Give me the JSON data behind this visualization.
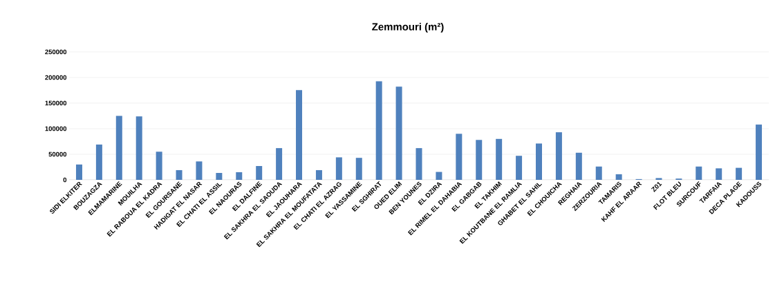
{
  "chart_data": {
    "type": "bar",
    "title": "Zemmouri (m²)",
    "categories": [
      "SIDI ELKITER",
      "BOUZAGZA",
      "ELMAMARINE",
      "MOUILHA",
      "EL RABOUA EL KADRA",
      "EL GOURSANE",
      "HADIGAT EL NASAR",
      "EL CHATI EL ASSIL",
      "EL NAOURAS",
      "EL DALFINE",
      "EL SAKHRA EL SAOUDA",
      "EL JAOUHARA",
      "EL SAKHRA EL MOUFATATA",
      "EL CHATI EL AZRAG",
      "EL YASSAMINE",
      "EL SGHIRAT",
      "OUED ELIM",
      "BEN YOUNES",
      "EL DZIRA",
      "EL RIMEL EL DAHABIA",
      "EL GABGAB",
      "EL TAKHIM",
      "EL KOUTBANE EL RAMLIA",
      "GHABET EL SAHIL",
      "EL CHOUICHA",
      "REGHAIA",
      "ZERZOURIA",
      "TAMARIS",
      "KAHF EL ARAAR",
      "Z01",
      "FLOT BLEU",
      "SURCOUF",
      "TARFAIA",
      "DECA PLAGE",
      "KADOUSS"
    ],
    "values": [
      30000,
      69000,
      125000,
      124000,
      55000,
      19000,
      36000,
      13500,
      15000,
      27000,
      62000,
      175500,
      19000,
      44000,
      43000,
      192500,
      182000,
      62000,
      15500,
      90000,
      78000,
      80000,
      47000,
      71000,
      93000,
      53000,
      26000,
      11000,
      1500,
      3500,
      2500,
      26000,
      22500,
      23500,
      108000
    ],
    "color": "#4f81bd",
    "ylim": [
      0,
      250000
    ],
    "yticks": [
      0,
      50000,
      100000,
      150000,
      200000,
      250000
    ],
    "grid": "y"
  }
}
